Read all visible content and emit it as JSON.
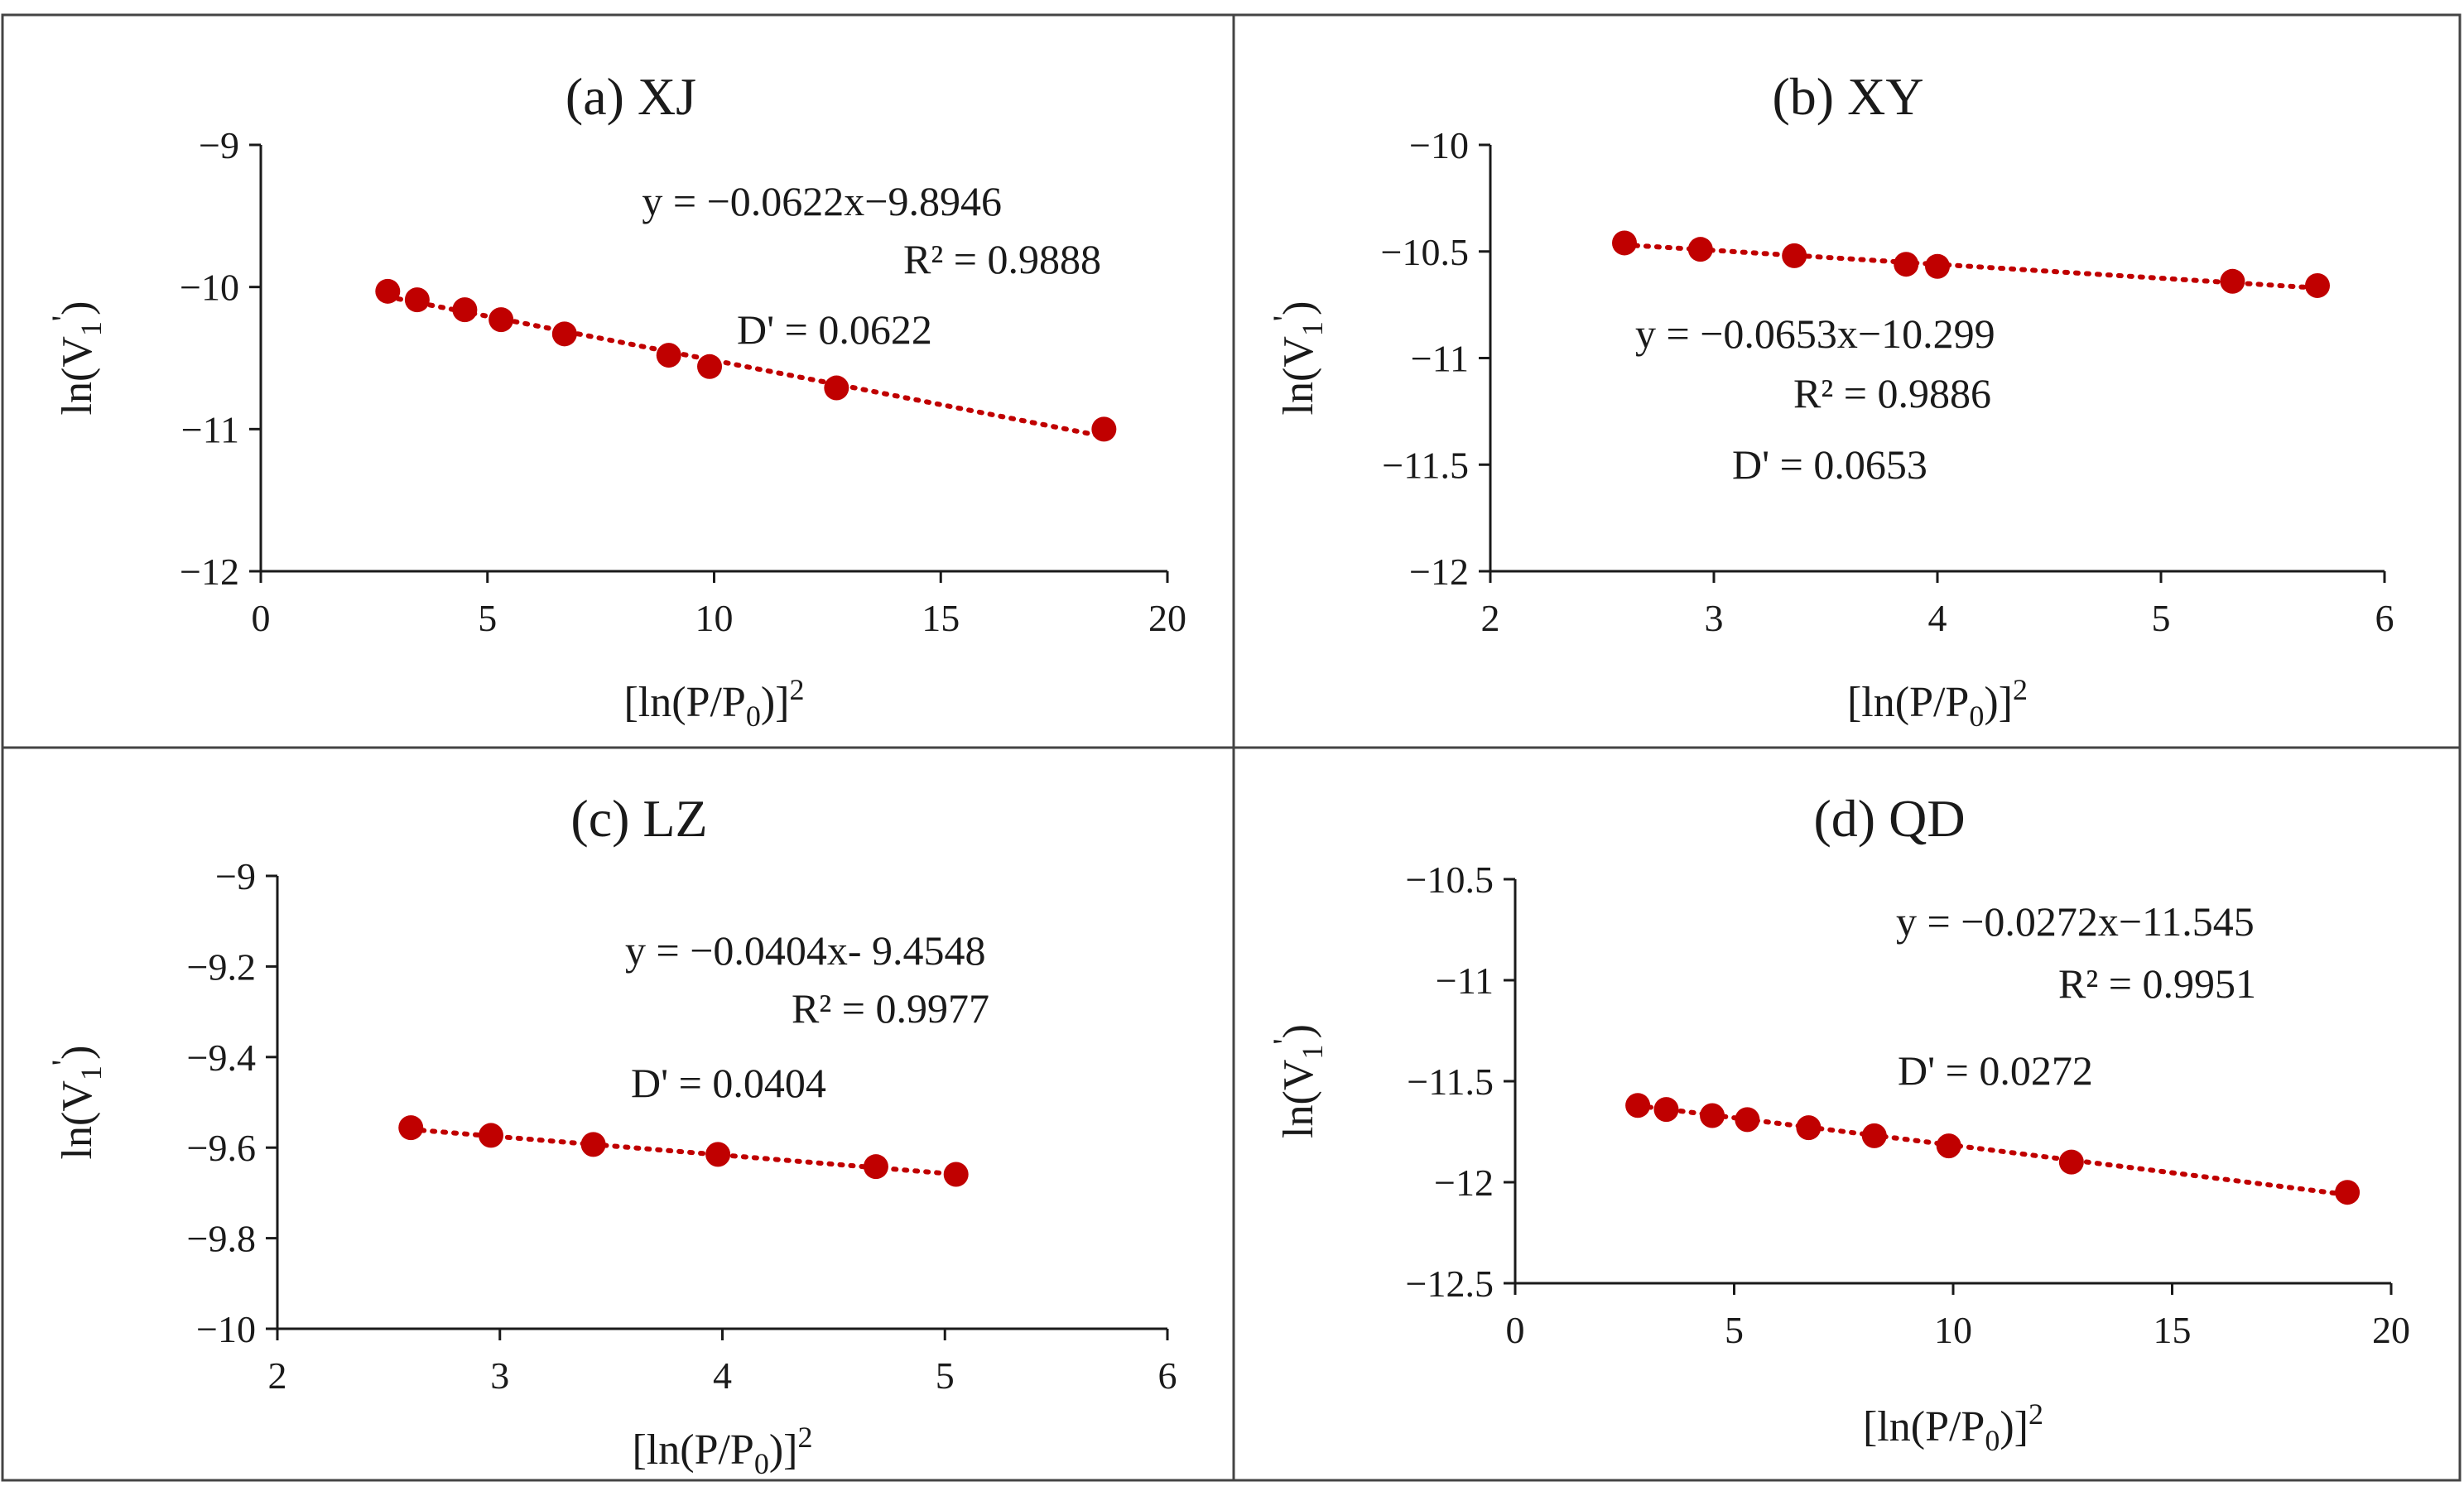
{
  "chart_data": [
    {
      "type": "scatter",
      "title": "(a) XJ",
      "xlabel": "[ln(P/P",
      "xlabel_sub": "0",
      "xlabel_sup": "2",
      "ylabel": "ln(V",
      "ylabel_sub": "1",
      "xlim": [
        0,
        20
      ],
      "ylim": [
        -12,
        -9
      ],
      "xticks": [
        0,
        5,
        10,
        15,
        20
      ],
      "xtick_labels": [
        "0",
        "5",
        "10",
        "15",
        "20"
      ],
      "yticks": [
        -12,
        -11,
        -10,
        -9
      ],
      "ytick_labels": [
        "−12",
        "−11",
        "−10",
        "−9"
      ],
      "x": [
        2.8,
        3.45,
        4.5,
        5.3,
        6.7,
        9.0,
        9.9,
        12.7,
        18.6
      ],
      "y": [
        -10.03,
        -10.09,
        -10.16,
        -10.23,
        -10.33,
        -10.48,
        -10.56,
        -10.71,
        -11.0
      ],
      "trend": {
        "slope": -0.0622,
        "intercept": -9.8946,
        "x_range": [
          2.8,
          18.6
        ]
      },
      "annotations": [
        "y = −0.0622x−9.8946",
        "R² = 0.9888",
        "D' = 0.0622"
      ],
      "legend": "none",
      "grid": false
    },
    {
      "type": "scatter",
      "title": "(b) XY",
      "xlabel": "[ln(P/P",
      "xlabel_sub": "0",
      "xlabel_sup": "2",
      "ylabel": "ln(V",
      "ylabel_sub": "1",
      "xlim": [
        2,
        6
      ],
      "ylim": [
        -12,
        -10
      ],
      "xticks": [
        2,
        3,
        4,
        5,
        6
      ],
      "xtick_labels": [
        "2",
        "3",
        "4",
        "5",
        "6"
      ],
      "yticks": [
        -12,
        -11.5,
        -11,
        -10.5,
        -10
      ],
      "ytick_labels": [
        "−12",
        "−11.5",
        "−11",
        "−10.5",
        "−10"
      ],
      "x": [
        2.6,
        2.94,
        3.36,
        3.86,
        4.0,
        5.32,
        5.7
      ],
      "y": [
        -10.46,
        -10.49,
        -10.52,
        -10.56,
        -10.57,
        -10.64,
        -10.66
      ],
      "trend": {
        "slope": -0.0653,
        "intercept": -10.299,
        "x_range": [
          2.6,
          5.7
        ]
      },
      "annotations": [
        "y = −0.0653x−10.299",
        "R² = 0.9886",
        "D' = 0.0653"
      ],
      "legend": "none",
      "grid": false
    },
    {
      "type": "scatter",
      "title": "(c) LZ",
      "xlabel": "[ln(P/P",
      "xlabel_sub": "0",
      "xlabel_sup": "2",
      "ylabel": "ln(V",
      "ylabel_sub": "1",
      "xlim": [
        2,
        6
      ],
      "ylim": [
        -10,
        -9
      ],
      "xticks": [
        2,
        3,
        4,
        5,
        6
      ],
      "xtick_labels": [
        "2",
        "3",
        "4",
        "5",
        "6"
      ],
      "yticks": [
        -10,
        -9.8,
        -9.6,
        -9.4,
        -9.2,
        -9
      ],
      "ytick_labels": [
        "−10",
        "−9.8",
        "−9.6",
        "−9.4",
        "−9.2",
        "−9"
      ],
      "x": [
        2.6,
        2.96,
        3.42,
        3.98,
        4.69,
        5.05
      ],
      "y": [
        -9.556,
        -9.573,
        -9.593,
        -9.615,
        -9.642,
        -9.659
      ],
      "trend": {
        "slope": -0.0404,
        "intercept": -9.4548,
        "x_range": [
          2.6,
          5.05
        ]
      },
      "annotations": [
        "y = −0.0404x- 9.4548",
        "R² = 0.9977",
        "D' = 0.0404"
      ],
      "legend": "none",
      "grid": false
    },
    {
      "type": "scatter",
      "title": "(d) QD",
      "xlabel": "[ln(P/P",
      "xlabel_sub": "0",
      "xlabel_sup": "2",
      "ylabel": "ln(V",
      "ylabel_sub": "1",
      "xlim": [
        0,
        20
      ],
      "ylim": [
        -12.5,
        -10.5
      ],
      "xticks": [
        0,
        5,
        10,
        15,
        20
      ],
      "xtick_labels": [
        "0",
        "5",
        "10",
        "15",
        "20"
      ],
      "yticks": [
        -12.5,
        -12,
        -11.5,
        -11,
        -10.5
      ],
      "ytick_labels": [
        "−12.5",
        "−12",
        "−11.5",
        "−11",
        "−10.5"
      ],
      "x": [
        2.8,
        3.45,
        4.5,
        5.3,
        6.7,
        8.2,
        9.9,
        12.7,
        19.0
      ],
      "y": [
        -11.62,
        -11.64,
        -11.67,
        -11.69,
        -11.73,
        -11.77,
        -11.82,
        -11.9,
        -12.05
      ],
      "trend": {
        "slope": -0.0272,
        "intercept": -11.545,
        "x_range": [
          2.8,
          19.0
        ]
      },
      "annotations": [
        "y = −0.0272x−11.545",
        "R² = 0.9951",
        "D' = 0.0272"
      ],
      "legend": "none",
      "grid": false
    }
  ],
  "colors": {
    "marker": "#c00000",
    "axis": "#1a1a1a",
    "border": "#444444"
  }
}
